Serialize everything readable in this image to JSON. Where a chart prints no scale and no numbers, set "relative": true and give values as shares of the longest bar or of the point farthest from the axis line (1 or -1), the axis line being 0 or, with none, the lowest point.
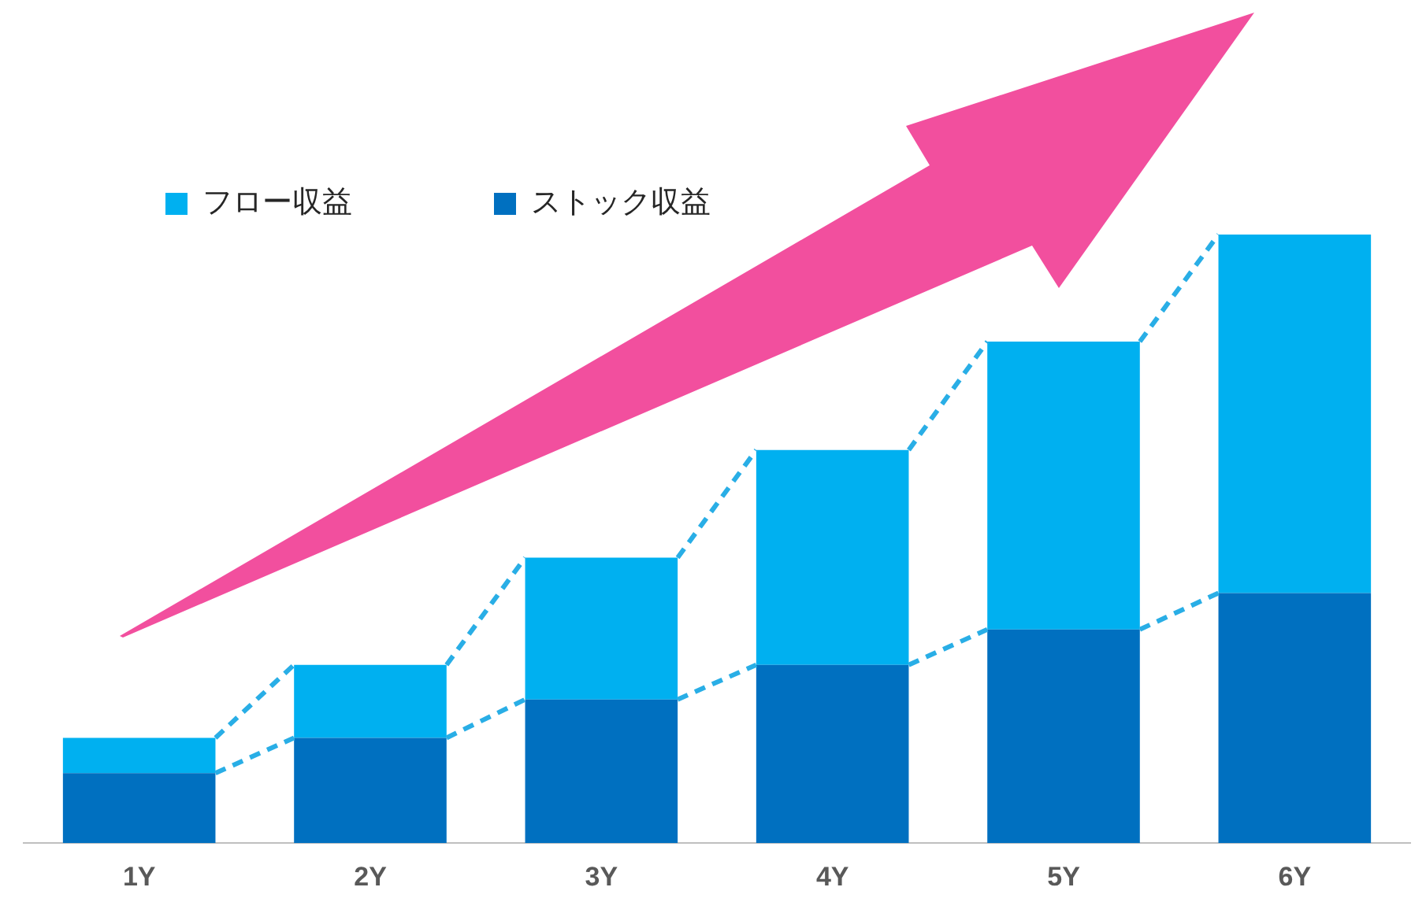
{
  "chart_data": {
    "type": "bar",
    "stacked": true,
    "relative": true,
    "legend": "top left",
    "grid": false,
    "categories": [
      "1Y",
      "2Y",
      "3Y",
      "4Y",
      "5Y",
      "6Y"
    ],
    "series": [
      {
        "name": "ストック収益",
        "color": "#0070c0",
        "values": [
          0.115,
          0.173,
          0.236,
          0.293,
          0.351,
          0.411
        ]
      },
      {
        "name": "フロー収益",
        "color": "#00b0f0",
        "values": [
          0.058,
          0.12,
          0.233,
          0.353,
          0.473,
          0.589
        ]
      }
    ]
  }
}
